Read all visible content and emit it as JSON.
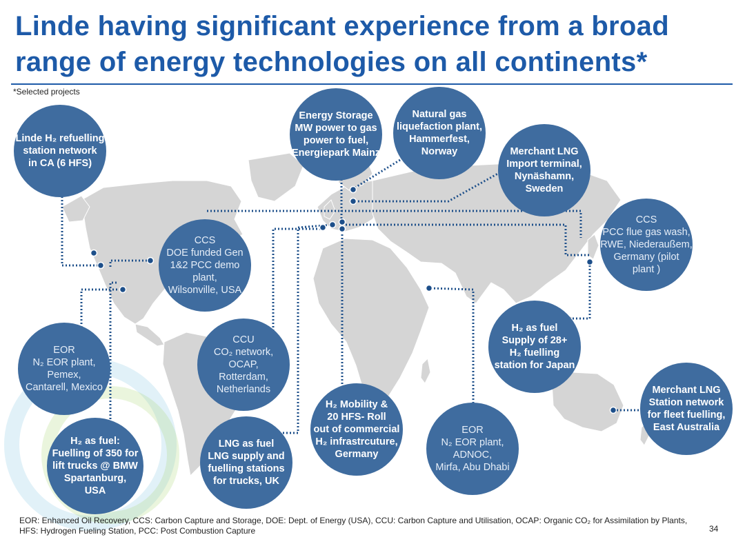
{
  "title": {
    "line1": "Linde having significant experience from a broad",
    "line2": "range of energy technologies on all continents*"
  },
  "subnote": "*Selected projects",
  "colors": {
    "title": "#1d5aa8",
    "circle": "#3f6c9f",
    "land": "#d5d5d5",
    "dots": "#1d4f8a"
  },
  "projects": {
    "h2_refuelling_ca": {
      "lines": [
        "Linde H₂ refuelling",
        "station network",
        "in CA (6 HFS)"
      ]
    },
    "energy_storage": {
      "lines": [
        "Energy Storage",
        "MW power to gas",
        "power to fuel,",
        "Energiepark Mainz"
      ]
    },
    "natural_gas": {
      "lines": [
        "Natural gas",
        "liquefaction plant,",
        "Hammerfest,",
        "Norway"
      ]
    },
    "merchant_lng_sweden": {
      "lines": [
        "Merchant LNG",
        "Import terminal,",
        "Nynäshamn,",
        "Sweden"
      ]
    },
    "ccs_germany": {
      "lines": [
        "CCS",
        "PCC flue gas wash,",
        "RWE, Niederaußem,",
        "Germany (pilot",
        "plant )"
      ]
    },
    "ccs_usa": {
      "lines": [
        "CCS",
        "DOE funded Gen",
        "1&2 PCC demo",
        "plant,",
        "Wilsonville, USA"
      ]
    },
    "eor_mexico": {
      "lines": [
        "EOR",
        "N₂ EOR plant,",
        "Pemex,",
        "Cantarell, Mexico"
      ]
    },
    "ccu_netherlands": {
      "lines": [
        "CCU",
        "CO₂ network,",
        "OCAP,",
        "Rotterdam,",
        "Netherlands"
      ]
    },
    "h2_fuel_japan": {
      "lines": [
        "H₂ as fuel",
        "Supply of 28+",
        "H₂ fuelling",
        "station for Japan"
      ]
    },
    "merchant_lng_australia": {
      "lines": [
        "Merchant LNG",
        "Station network",
        "for fleet fuelling,",
        "East Australia"
      ]
    },
    "h2_mobility_germany": {
      "lines": [
        "H₂ Mobility &",
        "20 HFS- Roll",
        "out of commercial",
        "H₂ infrastrcuture,",
        "Germany"
      ]
    },
    "eor_abu_dhabi": {
      "lines": [
        "EOR",
        "N₂ EOR plant,",
        "ADNOC,",
        "Mirfa, Abu Dhabi"
      ]
    },
    "lng_fuel_uk": {
      "lines": [
        "LNG as fuel",
        "LNG supply and",
        "fuelling stations",
        "for trucks, UK"
      ]
    },
    "h2_forklifts_usa": {
      "lines": [
        "H₂ as fuel:",
        "Fuelling of 350 for",
        "lift trucks @ BMW",
        "Spartanburg,",
        "USA"
      ]
    }
  },
  "footer": "EOR: Enhanced Oil Recovery, CCS: Carbon Capture and Storage, DOE: Dept. of Energy (USA), CCU: Carbon Capture and Utilisation, OCAP: Organic CO₂ for Assimilation by Plants, HFS:  Hydrogen Fueling Station, PCC:  Post Combustion Capture",
  "page_number": "34"
}
